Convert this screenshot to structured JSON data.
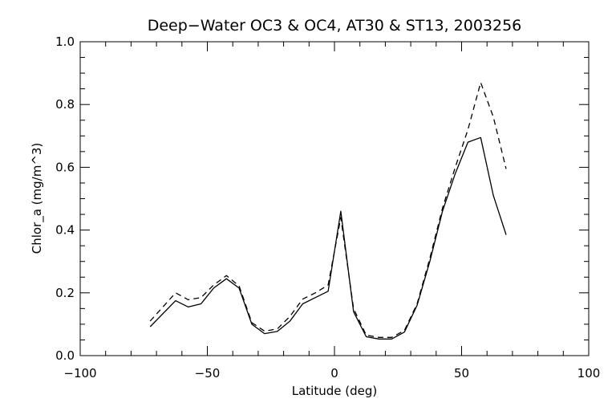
{
  "chart_data": {
    "type": "line",
    "title": "Deep−Water OC3 & OC4, AT30 & ST13, 2003256",
    "xlabel": "Latitude (deg)",
    "ylabel": "Chlor_a (mg/m^3)",
    "xlim": [
      -100,
      100
    ],
    "ylim": [
      0.0,
      1.0
    ],
    "xticks": [
      -100,
      -50,
      0,
      50,
      100
    ],
    "xtick_labels": [
      "−100",
      "−50",
      "0",
      "50",
      "100"
    ],
    "yticks": [
      0.0,
      0.2,
      0.4,
      0.6,
      0.8,
      1.0
    ],
    "ytick_labels": [
      "0.0",
      "0.2",
      "0.4",
      "0.6",
      "0.8",
      "1.0"
    ],
    "grid": false,
    "series": [
      {
        "style": "solid",
        "color": "#000000",
        "x": [
          -72.5,
          -62.5,
          -57.5,
          -52.5,
          -47.5,
          -42.5,
          -37.5,
          -32.5,
          -27.5,
          -22.5,
          -17.5,
          -12.5,
          -7.5,
          -2.5,
          2.5,
          7.5,
          12.5,
          17.5,
          22.5,
          27.5,
          32.5,
          37.5,
          42.5,
          47.5,
          52.5,
          57.5,
          62.5,
          67.5
        ],
        "y": [
          0.092,
          0.175,
          0.155,
          0.165,
          0.215,
          0.245,
          0.215,
          0.1,
          0.07,
          0.077,
          0.11,
          0.165,
          0.185,
          0.205,
          0.46,
          0.14,
          0.06,
          0.053,
          0.053,
          0.075,
          0.16,
          0.3,
          0.46,
          0.58,
          0.68,
          0.695,
          0.51,
          0.385
        ]
      },
      {
        "style": "dashed",
        "color": "#000000",
        "x": [
          -72.5,
          -62.5,
          -57.5,
          -52.5,
          -47.5,
          -42.5,
          -37.5,
          -32.5,
          -27.5,
          -22.5,
          -17.5,
          -12.5,
          -7.5,
          -2.5,
          2.5,
          7.5,
          12.5,
          17.5,
          22.5,
          27.5,
          32.5,
          37.5,
          42.5,
          47.5,
          52.5,
          57.5,
          62.5,
          67.5
        ],
        "y": [
          0.11,
          0.2,
          0.178,
          0.185,
          0.225,
          0.255,
          0.222,
          0.105,
          0.078,
          0.085,
          0.125,
          0.18,
          0.2,
          0.225,
          0.44,
          0.15,
          0.065,
          0.058,
          0.058,
          0.08,
          0.165,
          0.31,
          0.47,
          0.6,
          0.72,
          0.87,
          0.76,
          0.595
        ]
      }
    ]
  }
}
